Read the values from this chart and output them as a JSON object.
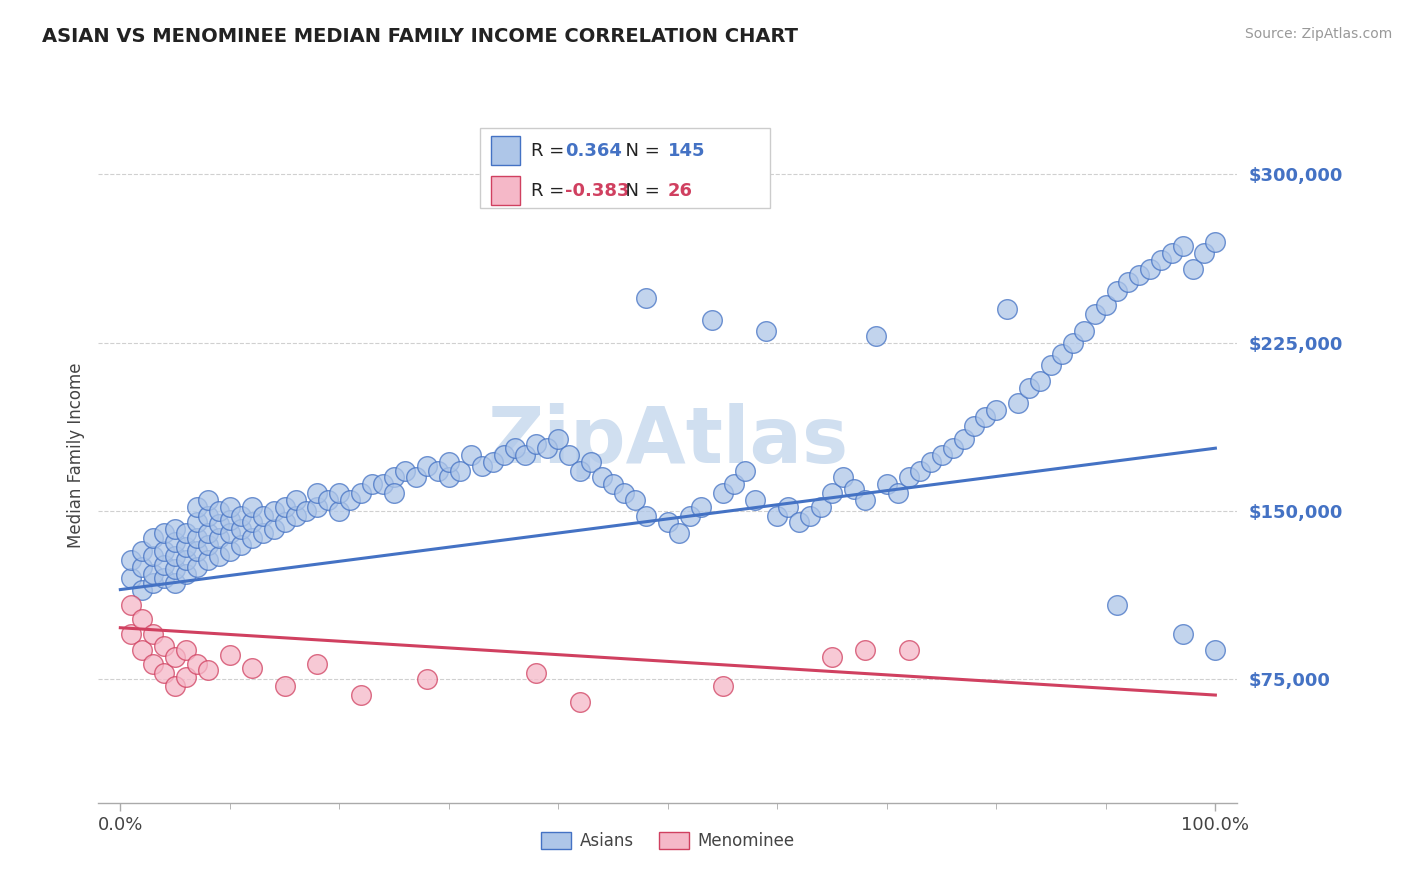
{
  "title": "ASIAN VS MENOMINEE MEDIAN FAMILY INCOME CORRELATION CHART",
  "source": "Source: ZipAtlas.com",
  "ylabel": "Median Family Income",
  "xlim": [
    -0.02,
    1.02
  ],
  "ylim": [
    20000,
    330000
  ],
  "yticks": [
    75000,
    150000,
    225000,
    300000
  ],
  "ytick_labels": [
    "$75,000",
    "$150,000",
    "$225,000",
    "$300,000"
  ],
  "xtick_positions": [
    0.0,
    1.0
  ],
  "xtick_labels": [
    "0.0%",
    "100.0%"
  ],
  "background_color": "#ffffff",
  "grid_color": "#d0d0d0",
  "asian_fill": "#aec6e8",
  "asian_edge": "#4472c4",
  "menominee_fill": "#f5b8c8",
  "menominee_edge": "#d04060",
  "watermark_color": "#d0dff0",
  "legend_R1": "0.364",
  "legend_N1": "145",
  "legend_R2": "-0.383",
  "legend_N2": "26",
  "asian_trend": [
    0.0,
    1.0,
    115000,
    178000
  ],
  "menominee_trend": [
    0.0,
    1.0,
    98000,
    68000
  ],
  "asian_x": [
    0.01,
    0.01,
    0.02,
    0.02,
    0.02,
    0.03,
    0.03,
    0.03,
    0.03,
    0.04,
    0.04,
    0.04,
    0.04,
    0.05,
    0.05,
    0.05,
    0.05,
    0.05,
    0.06,
    0.06,
    0.06,
    0.06,
    0.07,
    0.07,
    0.07,
    0.07,
    0.07,
    0.08,
    0.08,
    0.08,
    0.08,
    0.08,
    0.09,
    0.09,
    0.09,
    0.09,
    0.1,
    0.1,
    0.1,
    0.1,
    0.11,
    0.11,
    0.11,
    0.12,
    0.12,
    0.12,
    0.13,
    0.13,
    0.14,
    0.14,
    0.15,
    0.15,
    0.16,
    0.16,
    0.17,
    0.18,
    0.18,
    0.19,
    0.2,
    0.2,
    0.21,
    0.22,
    0.23,
    0.24,
    0.25,
    0.25,
    0.26,
    0.27,
    0.28,
    0.29,
    0.3,
    0.3,
    0.31,
    0.32,
    0.33,
    0.34,
    0.35,
    0.36,
    0.37,
    0.38,
    0.39,
    0.4,
    0.41,
    0.42,
    0.43,
    0.44,
    0.45,
    0.46,
    0.47,
    0.48,
    0.5,
    0.51,
    0.52,
    0.53,
    0.55,
    0.56,
    0.57,
    0.58,
    0.6,
    0.61,
    0.62,
    0.63,
    0.64,
    0.65,
    0.66,
    0.67,
    0.68,
    0.7,
    0.71,
    0.72,
    0.73,
    0.74,
    0.75,
    0.76,
    0.77,
    0.78,
    0.79,
    0.8,
    0.82,
    0.83,
    0.84,
    0.85,
    0.86,
    0.87,
    0.88,
    0.89,
    0.9,
    0.91,
    0.92,
    0.93,
    0.94,
    0.95,
    0.96,
    0.97,
    0.98,
    0.99,
    1.0,
    0.48,
    0.54,
    0.59,
    0.69,
    0.81,
    0.91,
    0.97,
    1.0
  ],
  "asian_y": [
    120000,
    128000,
    115000,
    125000,
    132000,
    118000,
    122000,
    130000,
    138000,
    120000,
    126000,
    132000,
    140000,
    118000,
    124000,
    130000,
    136000,
    142000,
    122000,
    128000,
    134000,
    140000,
    125000,
    132000,
    138000,
    145000,
    152000,
    128000,
    135000,
    140000,
    148000,
    155000,
    130000,
    138000,
    144000,
    150000,
    132000,
    140000,
    146000,
    152000,
    135000,
    142000,
    148000,
    138000,
    145000,
    152000,
    140000,
    148000,
    142000,
    150000,
    145000,
    152000,
    148000,
    155000,
    150000,
    152000,
    158000,
    155000,
    150000,
    158000,
    155000,
    158000,
    162000,
    162000,
    165000,
    158000,
    168000,
    165000,
    170000,
    168000,
    165000,
    172000,
    168000,
    175000,
    170000,
    172000,
    175000,
    178000,
    175000,
    180000,
    178000,
    182000,
    175000,
    168000,
    172000,
    165000,
    162000,
    158000,
    155000,
    148000,
    145000,
    140000,
    148000,
    152000,
    158000,
    162000,
    168000,
    155000,
    148000,
    152000,
    145000,
    148000,
    152000,
    158000,
    165000,
    160000,
    155000,
    162000,
    158000,
    165000,
    168000,
    172000,
    175000,
    178000,
    182000,
    188000,
    192000,
    195000,
    198000,
    205000,
    208000,
    215000,
    220000,
    225000,
    230000,
    238000,
    242000,
    248000,
    252000,
    255000,
    258000,
    262000,
    265000,
    268000,
    258000,
    265000,
    270000,
    245000,
    235000,
    230000,
    228000,
    240000,
    108000,
    95000,
    88000
  ],
  "menominee_x": [
    0.01,
    0.01,
    0.02,
    0.02,
    0.03,
    0.03,
    0.04,
    0.04,
    0.05,
    0.05,
    0.06,
    0.06,
    0.07,
    0.08,
    0.1,
    0.12,
    0.15,
    0.18,
    0.22,
    0.28,
    0.38,
    0.42,
    0.55,
    0.65,
    0.68,
    0.72
  ],
  "menominee_y": [
    108000,
    95000,
    102000,
    88000,
    95000,
    82000,
    90000,
    78000,
    85000,
    72000,
    88000,
    76000,
    82000,
    79000,
    86000,
    80000,
    72000,
    82000,
    68000,
    75000,
    78000,
    65000,
    72000,
    85000,
    88000,
    88000
  ]
}
